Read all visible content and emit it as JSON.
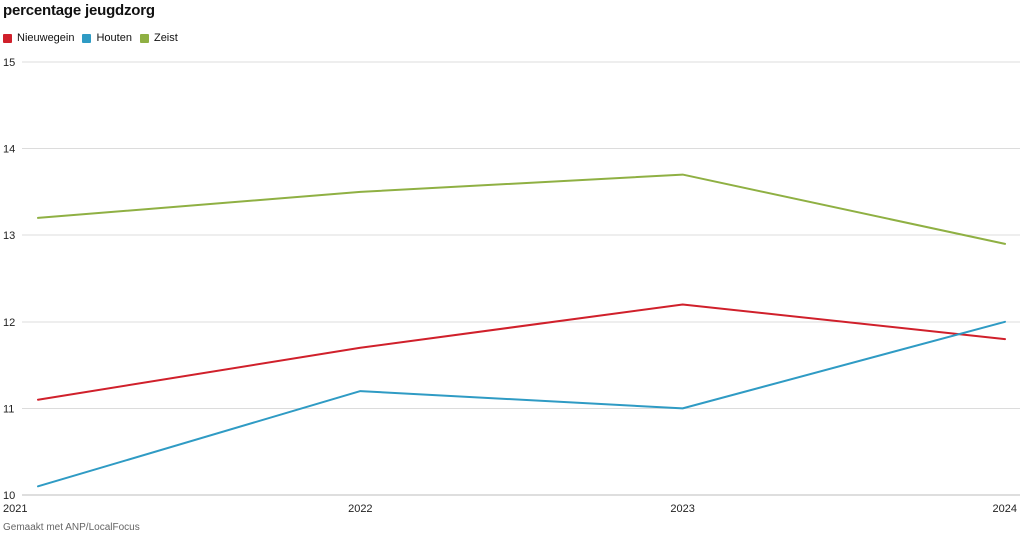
{
  "chart_data": {
    "type": "line",
    "title": "percentage jeugdzorg",
    "x": [
      "2021",
      "2022",
      "2023",
      "2024"
    ],
    "ylim": [
      10,
      15
    ],
    "yticks": [
      10,
      11,
      12,
      13,
      14,
      15
    ],
    "grid": true,
    "legend_position": "top-left",
    "series": [
      {
        "name": "Nieuwegein",
        "color": "#d0202b",
        "values": [
          11.1,
          11.7,
          12.2,
          11.8
        ]
      },
      {
        "name": "Houten",
        "color": "#2f9bc4",
        "values": [
          10.1,
          11.2,
          11.0,
          12.0
        ]
      },
      {
        "name": "Zeist",
        "color": "#8fb043",
        "values": [
          13.2,
          13.5,
          13.7,
          12.9
        ]
      }
    ]
  },
  "footer": "Gemaakt met ANP/LocalFocus"
}
